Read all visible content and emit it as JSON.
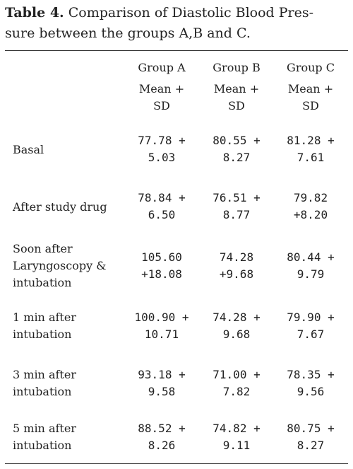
{
  "caption": {
    "label": "Table 4.",
    "text_line1": " Comparison of Diastolic Blood Pres-",
    "text_line2": "sure between the groups A,B and C."
  },
  "columns": [
    {
      "group": "Group A",
      "stat1": "Mean +",
      "stat2": "SD"
    },
    {
      "group": "Group B",
      "stat1": "Mean +",
      "stat2": "SD"
    },
    {
      "group": "Group C",
      "stat1": "Mean +",
      "stat2": "SD"
    }
  ],
  "rows": [
    {
      "label": [
        "Basal"
      ],
      "values": [
        [
          "77.78 +",
          "5.03"
        ],
        [
          "80.55 +",
          "8.27"
        ],
        [
          "81.28 +",
          "7.61"
        ]
      ]
    },
    {
      "label": [
        "After study drug"
      ],
      "values": [
        [
          "78.84 +",
          "6.50"
        ],
        [
          "76.51 +",
          "8.77"
        ],
        [
          "79.82",
          "+8.20"
        ]
      ]
    },
    {
      "label": [
        "Soon after",
        "Laryngoscopy &",
        "intubation"
      ],
      "values": [
        [
          "105.60",
          "+18.08"
        ],
        [
          "74.28",
          "+9.68"
        ],
        [
          "80.44 +",
          "9.79"
        ]
      ]
    },
    {
      "label": [
        "1 min after",
        "intubation"
      ],
      "values": [
        [
          "100.90 +",
          "10.71"
        ],
        [
          "74.28 +",
          "9.68"
        ],
        [
          "79.90 +",
          "7.67"
        ]
      ]
    },
    {
      "label": [
        "3 min after",
        "intubation"
      ],
      "values": [
        [
          "93.18 +",
          "9.58"
        ],
        [
          "71.00 +",
          "7.82"
        ],
        [
          "78.35 +",
          "9.56"
        ]
      ]
    },
    {
      "label": [
        "5 min after",
        "intubation"
      ],
      "values": [
        [
          "88.52 +",
          "8.26"
        ],
        [
          "74.82 +",
          "9.11"
        ],
        [
          "80.75 +",
          "8.27"
        ]
      ]
    }
  ]
}
